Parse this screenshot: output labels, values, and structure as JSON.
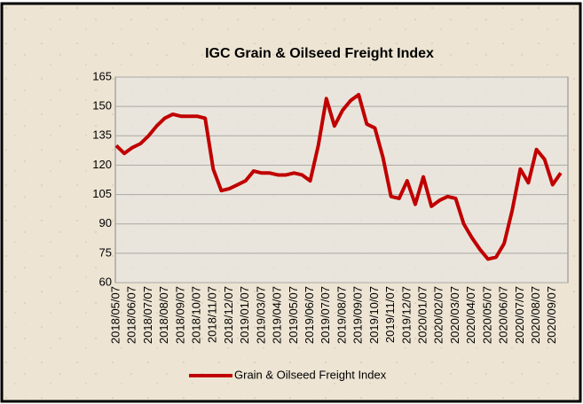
{
  "chart_data": {
    "type": "line",
    "title": "IGC Grain & Oilseed Freight Index",
    "categories": [
      "2018/05/07",
      null,
      "2018/06/07",
      null,
      "2018/07/07",
      null,
      "2018/08/07",
      null,
      "2018/09/07",
      null,
      "2018/10/07",
      null,
      "2018/11/07",
      null,
      "2018/12/07",
      null,
      "2019/01/07",
      null,
      "2019/03/07",
      null,
      "2019/04/07",
      null,
      "2019/05/07",
      null,
      "2019/06/07",
      null,
      "2019/07/07",
      null,
      "2019/08/07",
      null,
      "2019/09/07",
      null,
      "2019/10/07",
      null,
      "2019/11/07",
      null,
      "2019/12/07",
      null,
      "2020/01/07",
      null,
      "2020/02/07",
      null,
      "2020/03/07",
      null,
      "2020/04/07",
      null,
      "2020/05/07",
      null,
      "2020/06/07",
      null,
      "2020/07/07",
      null,
      "2020/08/07",
      null,
      "2020/09/07",
      null
    ],
    "series": [
      {
        "name": "Grain & Oilseed Freight Index",
        "color": "#c00000",
        "values": [
          130,
          126,
          129,
          131,
          135,
          140,
          144,
          146,
          145,
          145,
          145,
          144,
          118,
          107,
          108,
          110,
          112,
          117,
          116,
          116,
          115,
          115,
          116,
          115,
          112,
          130,
          154,
          140,
          148,
          153,
          156,
          141,
          139,
          124,
          104,
          103,
          112,
          100,
          114,
          99,
          102,
          104,
          103,
          90,
          83,
          77,
          72,
          73,
          80,
          97,
          118,
          111,
          128,
          123,
          110,
          116
        ]
      }
    ],
    "ylim": [
      60,
      165
    ],
    "yticks": [
      60,
      75,
      90,
      105,
      120,
      135,
      150,
      165
    ],
    "grid": true,
    "legend": "bottom"
  }
}
